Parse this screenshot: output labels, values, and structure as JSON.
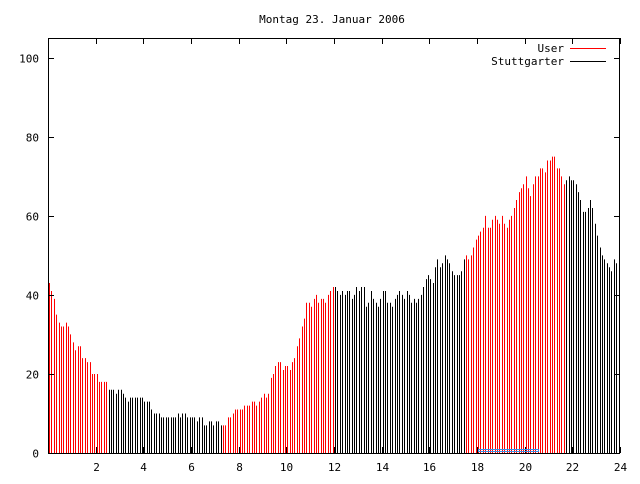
{
  "chart_data": {
    "type": "bar",
    "title": "Montag 23. Januar 2006",
    "xlabel": "",
    "ylabel": "",
    "xlim": [
      0,
      24
    ],
    "ylim": [
      0,
      105
    ],
    "x_ticks": [
      "2",
      "4",
      "6",
      "8",
      "10",
      "12",
      "14",
      "16",
      "18",
      "20",
      "22",
      "24"
    ],
    "y_ticks": [
      "0",
      "20",
      "40",
      "60",
      "80",
      "100"
    ],
    "x_step_hours": 0.1,
    "legend_position": "top-right",
    "series": [
      {
        "name": "User",
        "color": "#ff0000",
        "ranges_hours": [
          [
            0,
            2.4
          ],
          [
            7.3,
            11.9
          ],
          [
            17.5,
            21.6
          ]
        ]
      },
      {
        "name": "Stuttgarter",
        "color": "#000000",
        "ranges_hours": [
          [
            2.5,
            7.2
          ],
          [
            12.0,
            17.4
          ],
          [
            21.7,
            23.9
          ]
        ]
      }
    ],
    "values": [
      43,
      41,
      39,
      35,
      33,
      32,
      32,
      33,
      32,
      30,
      28,
      26,
      27,
      27,
      24,
      24,
      23,
      23,
      20,
      20,
      20,
      18,
      18,
      18,
      18,
      16,
      16,
      16,
      15,
      16,
      16,
      15,
      14,
      13,
      14,
      14,
      14,
      14,
      14,
      14,
      13,
      13,
      13,
      11,
      10,
      10,
      10,
      9,
      9,
      9,
      9,
      9,
      9,
      9,
      10,
      9,
      10,
      10,
      9,
      9,
      9,
      9,
      8,
      9,
      9,
      7,
      7,
      8,
      8,
      7,
      8,
      8,
      7,
      7,
      7,
      9,
      9,
      10,
      11,
      11,
      11,
      11,
      12,
      12,
      12,
      13,
      13,
      12,
      13,
      14,
      15,
      14,
      15,
      19,
      20,
      22,
      23,
      23,
      21,
      22,
      22,
      21,
      23,
      24,
      27,
      29,
      32,
      34,
      38,
      38,
      37,
      39,
      40,
      38,
      39,
      39,
      38,
      40,
      41,
      42,
      42,
      41,
      40,
      41,
      40,
      41,
      41,
      39,
      40,
      42,
      41,
      42,
      42,
      37,
      38,
      41,
      39,
      38,
      37,
      39,
      41,
      41,
      38,
      38,
      37,
      39,
      40,
      41,
      40,
      39,
      41,
      40,
      38,
      39,
      38,
      39,
      40,
      42,
      44,
      45,
      44,
      43,
      47,
      49,
      47,
      48,
      50,
      49,
      48,
      46,
      45,
      45,
      45,
      46,
      49,
      50,
      49,
      50,
      52,
      54,
      55,
      56,
      57,
      60,
      57,
      57,
      59,
      60,
      59,
      58,
      60,
      58,
      57,
      59,
      60,
      62,
      64,
      66,
      67,
      68,
      70,
      67,
      65,
      68,
      70,
      70,
      72,
      72,
      71,
      74,
      74,
      75,
      75,
      72,
      72,
      70,
      68,
      69,
      70,
      69,
      69,
      68,
      66,
      64,
      61,
      61,
      62,
      64,
      62,
      58,
      55,
      52,
      50,
      49,
      48,
      47,
      46,
      49,
      48,
      45
    ]
  }
}
